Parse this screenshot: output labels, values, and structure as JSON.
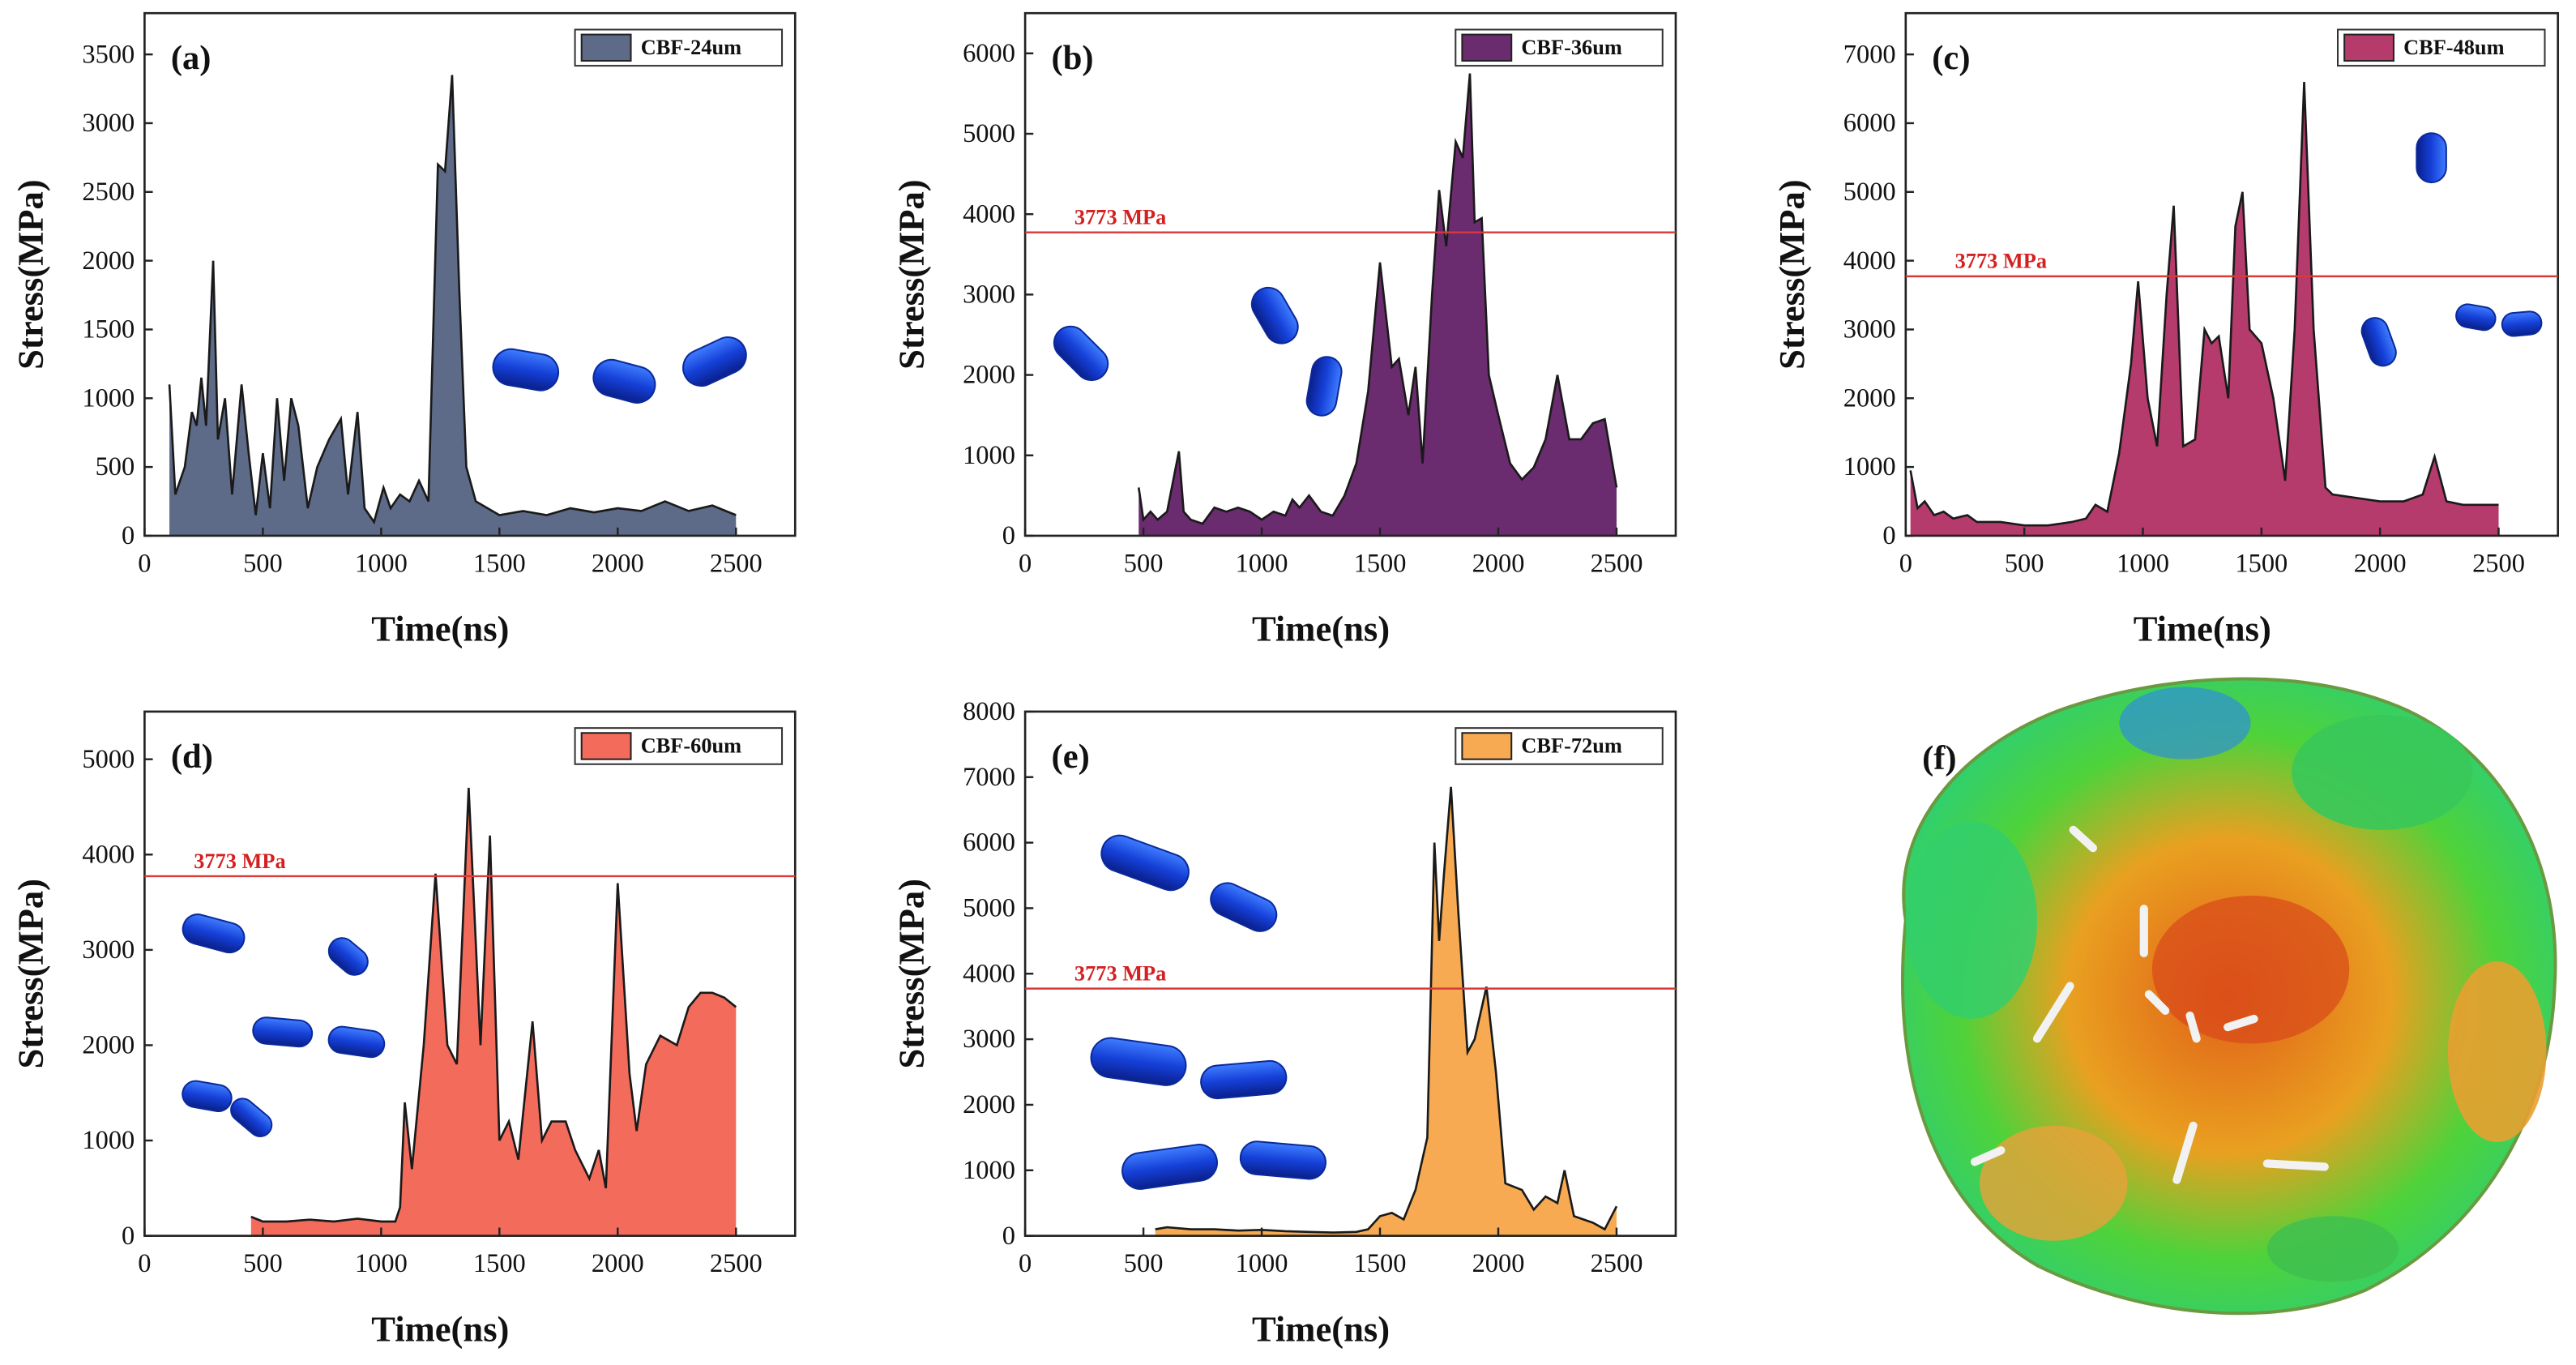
{
  "chart_data": [
    {
      "type": "area",
      "title": "(a)",
      "ylabel": "Stress(MPa)",
      "xlabel": "Time(ns)",
      "series": [
        {
          "name": "CBF-24um",
          "color": "#5d6b88",
          "x": [
            105,
            130,
            170,
            200,
            220,
            240,
            260,
            290,
            310,
            340,
            370,
            410,
            440,
            470,
            500,
            530,
            560,
            590,
            620,
            650,
            690,
            730,
            780,
            830,
            860,
            900,
            930,
            970,
            1010,
            1040,
            1080,
            1120,
            1160,
            1200,
            1240,
            1270,
            1300,
            1330,
            1360,
            1400,
            1500,
            1600,
            1700,
            1800,
            1900,
            2000,
            2100,
            2200,
            2300,
            2400,
            2500
          ],
          "values": [
            1100,
            300,
            500,
            900,
            800,
            1150,
            800,
            2000,
            700,
            1000,
            300,
            1100,
            600,
            150,
            600,
            200,
            1000,
            400,
            1000,
            800,
            200,
            500,
            700,
            850,
            300,
            900,
            200,
            100,
            350,
            200,
            300,
            250,
            400,
            250,
            2700,
            2650,
            3350,
            1800,
            500,
            250,
            150,
            180,
            150,
            200,
            170,
            200,
            180,
            250,
            180,
            220,
            150
          ]
        }
      ],
      "xlim": [
        0,
        2750
      ],
      "xticks": [
        0,
        500,
        1000,
        1500,
        2000,
        2500
      ],
      "ylim": [
        0,
        3800
      ],
      "yticks": [
        0,
        500,
        1000,
        1500,
        2000,
        2500,
        3000,
        3500
      ],
      "legend": "upper right"
    },
    {
      "type": "area",
      "title": "(b)",
      "ylabel": "Stress(MPa)",
      "xlabel": "Time(ns)",
      "series": [
        {
          "name": "CBF-36um",
          "color": "#6b2b6f",
          "x": [
            480,
            500,
            530,
            560,
            600,
            650,
            670,
            700,
            750,
            800,
            850,
            900,
            950,
            1000,
            1050,
            1100,
            1130,
            1160,
            1200,
            1250,
            1300,
            1350,
            1400,
            1450,
            1500,
            1550,
            1580,
            1620,
            1650,
            1680,
            1720,
            1750,
            1780,
            1820,
            1850,
            1880,
            1900,
            1930,
            1960,
            2000,
            2050,
            2100,
            2150,
            2200,
            2250,
            2300,
            2350,
            2400,
            2450,
            2500
          ],
          "values": [
            600,
            200,
            300,
            200,
            300,
            1050,
            300,
            200,
            150,
            350,
            300,
            350,
            300,
            200,
            300,
            250,
            450,
            350,
            500,
            300,
            250,
            500,
            900,
            1800,
            3400,
            2100,
            2200,
            1500,
            2100,
            900,
            3000,
            4300,
            3600,
            4900,
            4700,
            5750,
            3900,
            3950,
            2000,
            1500,
            900,
            700,
            850,
            1200,
            2000,
            1200,
            1200,
            1400,
            1450,
            600
          ]
        }
      ],
      "xlim": [
        0,
        2750
      ],
      "xticks": [
        0,
        500,
        1000,
        1500,
        2000,
        2500
      ],
      "ylim": [
        0,
        6500
      ],
      "yticks": [
        0,
        1000,
        2000,
        3000,
        4000,
        5000,
        6000
      ],
      "legend": "upper right",
      "threshold": 3773,
      "threshold_label": "3773 MPa"
    },
    {
      "type": "area",
      "title": "(c)",
      "ylabel": "Stress(MPa)",
      "xlabel": "Time(ns)",
      "series": [
        {
          "name": "CBF-48um",
          "color": "#b43b6b",
          "x": [
            20,
            50,
            80,
            120,
            160,
            200,
            260,
            300,
            400,
            500,
            600,
            700,
            760,
            800,
            850,
            900,
            950,
            980,
            1020,
            1060,
            1100,
            1130,
            1170,
            1220,
            1260,
            1290,
            1320,
            1360,
            1390,
            1420,
            1450,
            1500,
            1550,
            1600,
            1640,
            1680,
            1720,
            1770,
            1800,
            1900,
            2000,
            2100,
            2180,
            2230,
            2280,
            2350,
            2500
          ],
          "values": [
            950,
            400,
            500,
            300,
            350,
            250,
            300,
            200,
            200,
            150,
            150,
            200,
            250,
            450,
            350,
            1200,
            2500,
            3700,
            2000,
            1300,
            3500,
            4800,
            1300,
            1400,
            3000,
            2800,
            2900,
            2000,
            4500,
            5000,
            3000,
            2800,
            2000,
            800,
            3000,
            6600,
            3000,
            700,
            600,
            550,
            500,
            500,
            600,
            1150,
            500,
            450,
            450
          ]
        }
      ],
      "xlim": [
        0,
        2750
      ],
      "xticks": [
        0,
        500,
        1000,
        1500,
        2000,
        2500
      ],
      "ylim": [
        0,
        7600
      ],
      "yticks": [
        0,
        1000,
        2000,
        3000,
        4000,
        5000,
        6000,
        7000
      ],
      "legend": "upper right",
      "threshold": 3773,
      "threshold_label": "3773 MPa"
    },
    {
      "type": "area",
      "title": "(d)",
      "ylabel": "Stress(MPa)",
      "xlabel": "Time(ns)",
      "series": [
        {
          "name": "CBF-60um",
          "color": "#f36b5b",
          "x": [
            450,
            500,
            600,
            700,
            800,
            900,
            1000,
            1060,
            1080,
            1100,
            1130,
            1180,
            1230,
            1280,
            1320,
            1370,
            1420,
            1460,
            1500,
            1540,
            1580,
            1640,
            1680,
            1720,
            1780,
            1820,
            1880,
            1920,
            1950,
            2000,
            2050,
            2080,
            2120,
            2180,
            2250,
            2300,
            2350,
            2400,
            2450,
            2500
          ],
          "values": [
            200,
            150,
            150,
            170,
            150,
            180,
            150,
            150,
            300,
            1400,
            700,
            2000,
            3800,
            2000,
            1800,
            4700,
            2000,
            4200,
            1000,
            1200,
            800,
            2250,
            1000,
            1200,
            1200,
            900,
            600,
            900,
            500,
            3700,
            1700,
            1100,
            1800,
            2100,
            2000,
            2400,
            2550,
            2550,
            2500,
            2400
          ]
        }
      ],
      "xlim": [
        0,
        2750
      ],
      "xticks": [
        0,
        500,
        1000,
        1500,
        2000,
        2500
      ],
      "ylim": [
        0,
        5500
      ],
      "yticks": [
        0,
        1000,
        2000,
        3000,
        4000,
        5000
      ],
      "legend": "upper right",
      "threshold": 3773,
      "threshold_label": "3773 MPa"
    },
    {
      "type": "area",
      "title": "(e)",
      "ylabel": "Stress(MPa)",
      "xlabel": "Time(ns)",
      "series": [
        {
          "name": "CBF-72um",
          "color": "#f7aa52",
          "x": [
            550,
            600,
            700,
            800,
            900,
            1000,
            1100,
            1200,
            1300,
            1400,
            1450,
            1500,
            1550,
            1600,
            1650,
            1700,
            1730,
            1750,
            1770,
            1800,
            1830,
            1870,
            1900,
            1950,
            1990,
            2030,
            2100,
            2150,
            2200,
            2250,
            2280,
            2320,
            2400,
            2450,
            2500
          ],
          "values": [
            100,
            130,
            100,
            100,
            80,
            90,
            70,
            60,
            50,
            60,
            100,
            300,
            350,
            250,
            700,
            1500,
            6000,
            4500,
            5500,
            6850,
            5000,
            2800,
            3000,
            3800,
            2500,
            800,
            700,
            400,
            600,
            500,
            1000,
            300,
            200,
            100,
            450
          ]
        }
      ],
      "xlim": [
        0,
        2750
      ],
      "xticks": [
        0,
        500,
        1000,
        1500,
        2000,
        2500
      ],
      "ylim": [
        0,
        8000
      ],
      "yticks": [
        0,
        1000,
        2000,
        3000,
        4000,
        5000,
        6000,
        7000,
        8000
      ],
      "legend": "upper right",
      "threshold": 3773,
      "threshold_label": "3773 MPa"
    }
  ],
  "image_panel": {
    "label": "(f)"
  }
}
